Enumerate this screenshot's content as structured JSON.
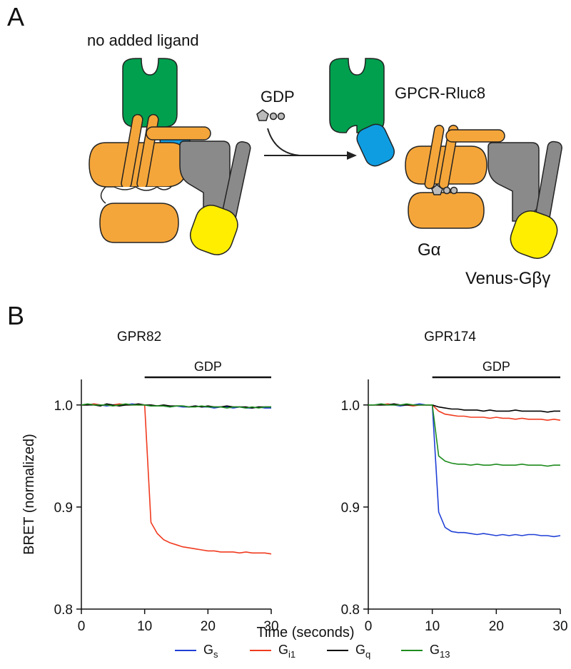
{
  "panels": {
    "a": "A",
    "b": "B"
  },
  "diagram": {
    "condition": "no added ligand",
    "ligand": "GDP",
    "receptor": "GPCR-Rluc8",
    "g_alpha": "Gα",
    "g_betagamma": "Venus-Gβγ"
  },
  "chart_data": [
    {
      "type": "line",
      "title": "GPR82",
      "x_label": "Time (seconds)",
      "y_label": "BRET (normalized)",
      "annotation": {
        "text": "GDP",
        "xrange": [
          10,
          30
        ]
      },
      "xlim": [
        0,
        30
      ],
      "ylim": [
        0.8,
        1.025
      ],
      "xticks": [
        0,
        10,
        20,
        30
      ],
      "yticks": [
        0.8,
        0.9,
        {
          "value": 1,
          "label": "1.0"
        }
      ],
      "x": [
        0,
        1,
        2,
        3,
        4,
        5,
        6,
        7,
        8,
        9,
        10,
        11,
        12,
        13,
        14,
        15,
        16,
        17,
        18,
        19,
        20,
        21,
        22,
        23,
        24,
        25,
        26,
        27,
        28,
        29,
        30
      ],
      "series": [
        {
          "name": "Gs",
          "color": "#1f3fd6",
          "values": [
            1.0,
            1.0,
            1.001,
            1.0,
            0.999,
            1.0,
            1.0,
            1.0,
            1.001,
            1.0,
            1.0,
            0.999,
            0.999,
            0.999,
            0.998,
            0.999,
            0.998,
            0.998,
            0.999,
            0.998,
            0.998,
            0.997,
            0.998,
            0.998,
            0.997,
            0.998,
            0.997,
            0.997,
            0.998,
            0.997,
            0.997
          ]
        },
        {
          "name": "Gi1",
          "color": "#f03a1e",
          "values": [
            1.0,
            1.0,
            1.001,
            1.0,
            1.0,
            1.0,
            1.001,
            1.0,
            1.0,
            1.0,
            1.0,
            0.885,
            0.874,
            0.868,
            0.865,
            0.863,
            0.861,
            0.86,
            0.859,
            0.858,
            0.857,
            0.857,
            0.856,
            0.856,
            0.856,
            0.855,
            0.856,
            0.855,
            0.855,
            0.855,
            0.854
          ]
        },
        {
          "name": "Gq",
          "color": "#000000",
          "values": [
            1.0,
            1.0,
            1.0,
            0.999,
            1.001,
            1.0,
            0.999,
            1.0,
            1.0,
            1.001,
            1.0,
            1.0,
            0.999,
            1.0,
            0.999,
            0.999,
            0.999,
            0.998,
            0.999,
            0.998,
            0.999,
            0.998,
            0.998,
            0.999,
            0.998,
            0.998,
            0.998,
            0.997,
            0.998,
            0.998,
            0.998
          ]
        },
        {
          "name": "G13",
          "color": "#1e8c1e",
          "values": [
            1.0,
            1.001,
            1.0,
            1.0,
            1.0,
            0.999,
            1.0,
            1.001,
            1.0,
            1.0,
            1.0,
            0.999,
            0.999,
            0.999,
            0.998,
            0.999,
            0.999,
            0.998,
            0.998,
            0.999,
            0.998,
            0.998,
            0.998,
            0.997,
            0.998,
            0.998,
            0.997,
            0.998,
            0.997,
            0.998,
            0.998
          ]
        }
      ]
    },
    {
      "type": "line",
      "title": "GPR174",
      "annotation": {
        "text": "GDP",
        "xrange": [
          10,
          30
        ]
      },
      "xlim": [
        0,
        30
      ],
      "ylim": [
        0.8,
        1.025
      ],
      "xticks": [
        0,
        10,
        20,
        30
      ],
      "yticks": [
        0.8,
        0.9,
        {
          "value": 1,
          "label": "1.0"
        }
      ],
      "x": [
        0,
        1,
        2,
        3,
        4,
        5,
        6,
        7,
        8,
        9,
        10,
        11,
        12,
        13,
        14,
        15,
        16,
        17,
        18,
        19,
        20,
        21,
        22,
        23,
        24,
        25,
        26,
        27,
        28,
        29,
        30
      ],
      "series": [
        {
          "name": "Gs",
          "color": "#1f3fd6",
          "values": [
            1.0,
            1.0,
            1.001,
            1.0,
            1.0,
            0.999,
            1.0,
            1.0,
            1.001,
            1.0,
            1.0,
            0.895,
            0.88,
            0.876,
            0.875,
            0.875,
            0.874,
            0.873,
            0.874,
            0.873,
            0.872,
            0.873,
            0.872,
            0.873,
            0.872,
            0.873,
            0.873,
            0.872,
            0.872,
            0.871,
            0.872
          ]
        },
        {
          "name": "Gi1",
          "color": "#f03a1e",
          "values": [
            1.0,
            1.0,
            1.0,
            1.001,
            1.0,
            1.0,
            1.0,
            0.999,
            1.0,
            1.0,
            1.0,
            0.994,
            0.991,
            0.99,
            0.989,
            0.989,
            0.988,
            0.988,
            0.988,
            0.987,
            0.988,
            0.987,
            0.987,
            0.986,
            0.987,
            0.986,
            0.986,
            0.986,
            0.985,
            0.986,
            0.985
          ]
        },
        {
          "name": "Gq",
          "color": "#000000",
          "values": [
            1.0,
            1.0,
            1.0,
            1.0,
            1.001,
            1.0,
            1.0,
            1.0,
            1.0,
            1.0,
            1.0,
            0.998,
            0.997,
            0.996,
            0.996,
            0.995,
            0.995,
            0.995,
            0.994,
            0.995,
            0.994,
            0.994,
            0.994,
            0.995,
            0.994,
            0.994,
            0.994,
            0.994,
            0.993,
            0.994,
            0.994
          ]
        },
        {
          "name": "G13",
          "color": "#1e8c1e",
          "values": [
            1.0,
            1.0,
            1.001,
            1.0,
            1.0,
            1.0,
            1.001,
            1.0,
            1.0,
            1.0,
            1.0,
            0.95,
            0.945,
            0.943,
            0.942,
            0.942,
            0.941,
            0.942,
            0.941,
            0.941,
            0.942,
            0.941,
            0.941,
            0.941,
            0.942,
            0.941,
            0.941,
            0.941,
            0.94,
            0.941,
            0.941
          ]
        }
      ]
    }
  ]
}
